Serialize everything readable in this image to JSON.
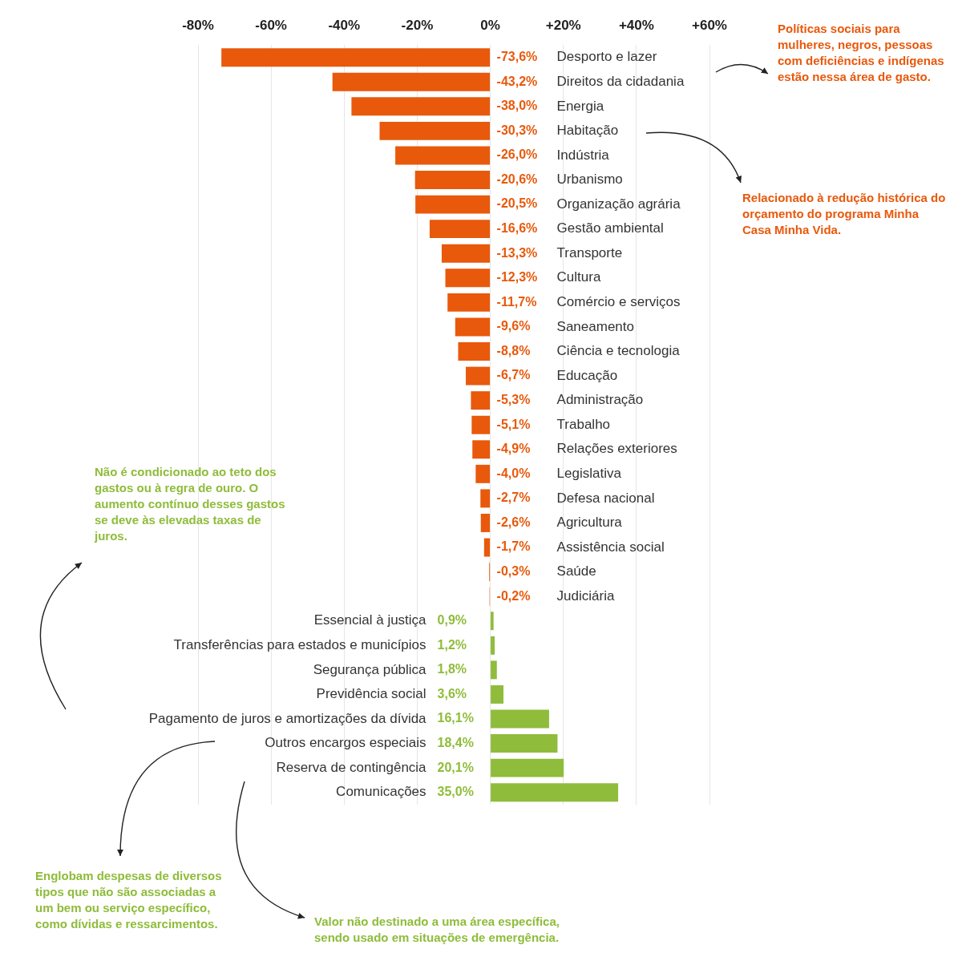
{
  "chart_data": {
    "type": "bar",
    "orientation": "horizontal",
    "categories": [
      "Desporto e lazer",
      "Direitos da cidadania",
      "Energia",
      "Habitação",
      "Indústria",
      "Urbanismo",
      "Organização agrária",
      "Gestão ambiental",
      "Transporte",
      "Cultura",
      "Comércio e serviços",
      "Saneamento",
      "Ciência e tecnologia",
      "Educação",
      "Administração",
      "Trabalho",
      "Relações exteriores",
      "Legislativa",
      "Defesa nacional",
      "Agricultura",
      "Assistência social",
      "Saúde",
      "Judiciária",
      "Essencial à justiça",
      "Transferências para estados e municípios",
      "Segurança pública",
      "Previdência social",
      "Pagamento de juros e amortizações da dívida",
      "Outros encargos especiais",
      "Reserva de contingência",
      "Comunicações"
    ],
    "values": [
      -73.6,
      -43.2,
      -38.0,
      -30.3,
      -26.0,
      -20.6,
      -20.5,
      -16.6,
      -13.3,
      -12.3,
      -11.7,
      -9.6,
      -8.8,
      -6.7,
      -5.3,
      -5.1,
      -4.9,
      -4.0,
      -2.7,
      -2.6,
      -1.7,
      -0.3,
      -0.2,
      0.9,
      1.2,
      1.8,
      3.6,
      16.1,
      18.4,
      20.1,
      35.0
    ],
    "colors": [
      "#e8590c",
      "#e8590c",
      "#e8590c",
      "#e8590c",
      "#e8590c",
      "#e8590c",
      "#e8590c",
      "#e8590c",
      "#e8590c",
      "#e8590c",
      "#e8590c",
      "#e8590c",
      "#e8590c",
      "#e8590c",
      "#e8590c",
      "#e8590c",
      "#e8590c",
      "#e8590c",
      "#e8590c",
      "#e8590c",
      "#e8590c",
      "#e8590c",
      "#e8590c",
      "#8fbc3b",
      "#8fbc3b",
      "#8fbc3b",
      "#8fbc3b",
      "#8fbc3b",
      "#8fbc3b",
      "#8fbc3b",
      "#8fbc3b"
    ],
    "value_labels": [
      "-73,6%",
      "-43,2%",
      "-38,0%",
      "-30,3%",
      "-26,0%",
      "-20,6%",
      "-20,5%",
      "-16,6%",
      "-13,3%",
      "-12,3%",
      "-11,7%",
      "-9,6%",
      "-8,8%",
      "-6,7%",
      "-5,3%",
      "-5,1%",
      "-4,9%",
      "-4,0%",
      "-2,7%",
      "-2,6%",
      "-1,7%",
      "-0,3%",
      "-0,2%",
      "0,9%",
      "1,2%",
      "1,8%",
      "3,6%",
      "16,1%",
      "18,4%",
      "20,1%",
      "35,0%"
    ],
    "xlim": [
      -80,
      60
    ],
    "xticks": [
      {
        "value": -80,
        "label": "-80%"
      },
      {
        "value": -60,
        "label": "-60%"
      },
      {
        "value": -40,
        "label": "-40%"
      },
      {
        "value": -20,
        "label": "-20%"
      },
      {
        "value": 0,
        "label": "0%"
      },
      {
        "value": 20,
        "label": "+20%"
      },
      {
        "value": 40,
        "label": "+40%"
      },
      {
        "value": 60,
        "label": "+60%"
      }
    ],
    "grid": "x",
    "annotations": [
      "Políticas sociais para mulheres, negros, pessoas com deficiências e indígenas estão nessa área de gasto.",
      "Relacionado à redução histórica do orçamento do programa Minha Casa Minha Vida.",
      "Não é condicionado ao teto dos gastos ou à regra de ouro. O aumento contínuo desses gastos se deve às elevadas taxas de juros.",
      "Englobam despesas de diversos tipos que não são associadas a um bem ou serviço específico, como dívidas e ressarcimentos.",
      "Valor não destinado a uma área específica, sendo usado em situações de emergência."
    ]
  }
}
